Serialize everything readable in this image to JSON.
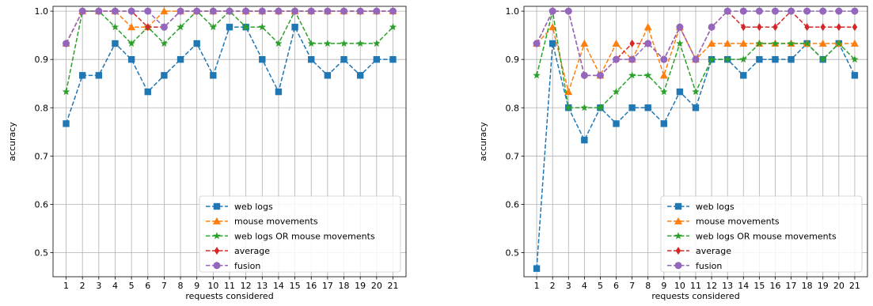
{
  "chart_data": [
    {
      "type": "line",
      "xlabel": "requests considered",
      "ylabel": "accuracy",
      "ylim": [
        0.45,
        1.01
      ],
      "xlim": [
        0.2,
        21.8
      ],
      "yticks": [
        "0.5",
        "0.6",
        "0.7",
        "0.8",
        "0.9",
        "1.0"
      ],
      "categories": [
        "1",
        "2",
        "3",
        "4",
        "5",
        "6",
        "7",
        "8",
        "9",
        "10",
        "11",
        "12",
        "13",
        "14",
        "15",
        "16",
        "17",
        "18",
        "19",
        "20",
        "21"
      ],
      "grid": true,
      "legend_position": "lower-right",
      "series": [
        {
          "name": "web logs",
          "color": "#1f77b4",
          "marker": "square",
          "values": [
            0.767,
            0.867,
            0.867,
            0.933,
            0.9,
            0.833,
            0.867,
            0.9,
            0.933,
            0.867,
            0.967,
            0.967,
            0.9,
            0.833,
            0.967,
            0.9,
            0.867,
            0.9,
            0.867,
            0.9,
            0.9
          ]
        },
        {
          "name": "mouse movements",
          "color": "#ff7f0e",
          "marker": "triangle",
          "values": [
            0.933,
            1.0,
            1.0,
            1.0,
            0.967,
            0.967,
            1.0,
            1.0,
            1.0,
            1.0,
            1.0,
            1.0,
            1.0,
            1.0,
            1.0,
            1.0,
            1.0,
            1.0,
            1.0,
            1.0,
            1.0
          ]
        },
        {
          "name": "web logs OR mouse movements",
          "color": "#2ca02c",
          "marker": "star",
          "values": [
            0.833,
            1.0,
            1.0,
            0.967,
            0.933,
            0.967,
            0.933,
            0.967,
            1.0,
            0.967,
            1.0,
            0.967,
            0.967,
            0.933,
            1.0,
            0.933,
            0.933,
            0.933,
            0.933,
            0.933,
            0.967
          ]
        },
        {
          "name": "average",
          "color": "#d62728",
          "marker": "diamond",
          "values": [
            0.933,
            1.0,
            1.0,
            1.0,
            1.0,
            0.967,
            0.967,
            1.0,
            1.0,
            1.0,
            1.0,
            1.0,
            1.0,
            1.0,
            1.0,
            1.0,
            1.0,
            1.0,
            1.0,
            1.0,
            1.0
          ]
        },
        {
          "name": "fusion",
          "color": "#9467bd",
          "marker": "circle",
          "values": [
            0.933,
            1.0,
            1.0,
            1.0,
            1.0,
            1.0,
            0.967,
            1.0,
            1.0,
            1.0,
            1.0,
            1.0,
            1.0,
            1.0,
            1.0,
            1.0,
            1.0,
            1.0,
            1.0,
            1.0,
            1.0
          ]
        }
      ]
    },
    {
      "type": "line",
      "xlabel": "requests considered",
      "ylabel": "accuracy",
      "ylim": [
        0.45,
        1.01
      ],
      "xlim": [
        0.2,
        21.8
      ],
      "yticks": [
        "0.5",
        "0.6",
        "0.7",
        "0.8",
        "0.9",
        "1.0"
      ],
      "categories": [
        "1",
        "2",
        "3",
        "4",
        "5",
        "6",
        "7",
        "8",
        "9",
        "10",
        "11",
        "12",
        "13",
        "14",
        "15",
        "16",
        "17",
        "18",
        "19",
        "20",
        "21"
      ],
      "grid": true,
      "legend_position": "lower-right",
      "series": [
        {
          "name": "web logs",
          "color": "#1f77b4",
          "marker": "square",
          "values": [
            0.467,
            0.933,
            0.8,
            0.733,
            0.8,
            0.767,
            0.8,
            0.8,
            0.767,
            0.833,
            0.8,
            0.9,
            0.9,
            0.867,
            0.9,
            0.9,
            0.9,
            0.933,
            0.9,
            0.933,
            0.867
          ]
        },
        {
          "name": "mouse movements",
          "color": "#ff7f0e",
          "marker": "triangle",
          "values": [
            0.933,
            0.967,
            0.833,
            0.933,
            0.867,
            0.933,
            0.9,
            0.967,
            0.867,
            0.967,
            0.9,
            0.933,
            0.933,
            0.933,
            0.933,
            0.933,
            0.933,
            0.933,
            0.933,
            0.933,
            0.933
          ]
        },
        {
          "name": "web logs OR mouse movements",
          "color": "#2ca02c",
          "marker": "star",
          "values": [
            0.867,
            1.0,
            0.8,
            0.8,
            0.8,
            0.833,
            0.867,
            0.867,
            0.833,
            0.933,
            0.833,
            0.9,
            0.9,
            0.9,
            0.933,
            0.933,
            0.933,
            0.933,
            0.9,
            0.933,
            0.9
          ]
        },
        {
          "name": "average",
          "color": "#d62728",
          "marker": "diamond",
          "values": [
            0.933,
            1.0,
            1.0,
            0.867,
            0.867,
            0.9,
            0.933,
            0.933,
            0.9,
            0.967,
            0.9,
            0.967,
            1.0,
            0.967,
            0.967,
            0.967,
            1.0,
            0.967,
            0.967,
            0.967,
            0.967
          ]
        },
        {
          "name": "fusion",
          "color": "#9467bd",
          "marker": "circle",
          "values": [
            0.933,
            1.0,
            1.0,
            0.867,
            0.867,
            0.9,
            0.9,
            0.933,
            0.9,
            0.967,
            0.9,
            0.967,
            1.0,
            1.0,
            1.0,
            1.0,
            1.0,
            1.0,
            1.0,
            1.0,
            1.0
          ]
        }
      ]
    }
  ]
}
